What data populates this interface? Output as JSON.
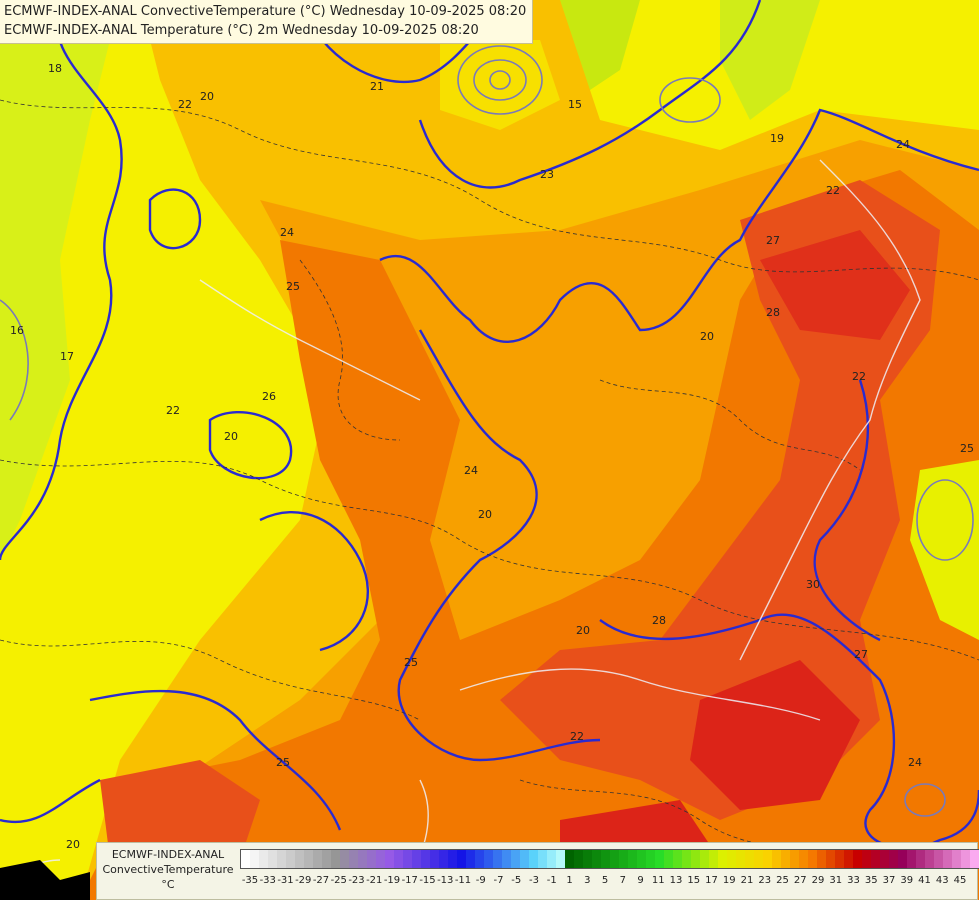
{
  "titles": {
    "line1": "ECMWF-INDEX-ANAL ConvectiveTemperature (°C) Wednesday 10-09-2025 08:20",
    "line2": "ECMWF-INDEX-ANAL Temperature (°C) 2m Wednesday 10-09-2025 08:20"
  },
  "legend": {
    "line1": "ECMWF-INDEX-ANAL",
    "line2": "ConvectiveTemperature",
    "unit": "°C",
    "ticks": [
      "-35",
      "-33",
      "-31",
      "-29",
      "-27",
      "-25",
      "-23",
      "-21",
      "-19",
      "-17",
      "-15",
      "-13",
      "-11",
      "-9",
      "-7",
      "-5",
      "-3",
      "-1",
      "1",
      "3",
      "5",
      "7",
      "9",
      "11",
      "13",
      "15",
      "17",
      "19",
      "21",
      "23",
      "25",
      "27",
      "29",
      "31",
      "33",
      "35",
      "37",
      "39",
      "41",
      "43",
      "45"
    ]
  },
  "colors": {
    "cold_region": "#d8f018",
    "yellow_region": "#f5f000",
    "orange_light": "#f9c000",
    "orange": "#f7a000",
    "orange_deep": "#f27800",
    "red": "#e83c10",
    "red_deep": "#d81e1e",
    "contour_temp2m": "#2a2ad0",
    "contour_grey": "#7a7ab8",
    "border_line": "#e8e8f0"
  },
  "contour_labels": [
    "18",
    "20",
    "21",
    "22",
    "24",
    "25",
    "26",
    "28",
    "30",
    "17",
    "19",
    "15",
    "16",
    "23",
    "27"
  ]
}
